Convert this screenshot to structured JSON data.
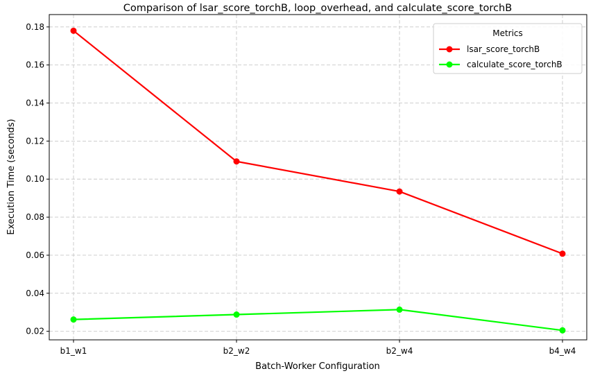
{
  "chart_data": {
    "type": "line",
    "title": "Comparison of lsar_score_torchB, loop_overhead, and calculate_score_torchB",
    "xlabel": "Batch-Worker Configuration",
    "ylabel": "Execution Time (seconds)",
    "categories": [
      "b1_w1",
      "b2_w2",
      "b2_w4",
      "b4_w4"
    ],
    "ylim": [
      0.0155,
      0.1865
    ],
    "yticks": [
      0.02,
      0.04,
      0.06,
      0.08,
      0.1,
      0.12,
      0.14,
      0.16,
      0.18
    ],
    "ytick_labels": [
      "0.02",
      "0.04",
      "0.06",
      "0.08",
      "0.10",
      "0.12",
      "0.14",
      "0.16",
      "0.18"
    ],
    "grid": true,
    "legend": {
      "title": "Metrics",
      "position": "top-right"
    },
    "series": [
      {
        "name": "lsar_score_torchB",
        "color": "#ff0000",
        "values": [
          0.178,
          0.1093,
          0.0935,
          0.0608
        ]
      },
      {
        "name": "calculate_score_torchB",
        "color": "#00ff00",
        "values": [
          0.0262,
          0.0288,
          0.0314,
          0.0205
        ]
      }
    ]
  }
}
